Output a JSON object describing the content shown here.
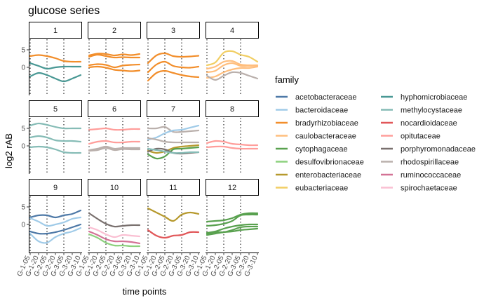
{
  "chart_data": {
    "type": "line",
    "title": "glucose series",
    "xlabel": "time points",
    "ylabel": "log2 rAB",
    "x": [
      "G-1-05",
      "G-1-20",
      "G-2-05",
      "G-2-20",
      "G-3-05",
      "G-3-20",
      "G-3-10"
    ],
    "x_tick_labels": [
      "G-1-05",
      "G-1-20",
      "G-2-05",
      "G-2-20",
      "G-3-05",
      "G-3-20",
      "G-3-10"
    ],
    "vlines_at_index": [
      0,
      2,
      4
    ],
    "ylim": [
      -8,
      8
    ],
    "y_ticks": [
      0,
      5
    ],
    "grid": false,
    "facet_strip_labels": [
      "1",
      "2",
      "3",
      "4",
      "5",
      "6",
      "7",
      "8",
      "9",
      "10",
      "11",
      "12"
    ],
    "legend": {
      "title": "family",
      "placement": "right",
      "entries": [
        {
          "name": "acetobacteraceae",
          "color": "#4e79a7"
        },
        {
          "name": "bacteroidaceae",
          "color": "#a0cbe8"
        },
        {
          "name": "bradyrhizobiaceae",
          "color": "#f28e2b"
        },
        {
          "name": "caulobacteraceae",
          "color": "#ffbe7d"
        },
        {
          "name": "cytophagaceae",
          "color": "#59a14f"
        },
        {
          "name": "desulfovibrionaceae",
          "color": "#8cd17d"
        },
        {
          "name": "enterobacteriaceae",
          "color": "#b6992d"
        },
        {
          "name": "eubacteriaceae",
          "color": "#f1ce63"
        },
        {
          "name": "hyphomicrobiaceae",
          "color": "#499894"
        },
        {
          "name": "methylocystaceae",
          "color": "#86bcb6"
        },
        {
          "name": "nocardioidaceae",
          "color": "#e15759"
        },
        {
          "name": "opitutaceae",
          "color": "#ff9d9a"
        },
        {
          "name": "porphyromonadaceae",
          "color": "#79706e"
        },
        {
          "name": "rhodospirillaceae",
          "color": "#bab0ac"
        },
        {
          "name": "ruminococcaceae",
          "color": "#d37295"
        },
        {
          "name": "spirochaetaceae",
          "color": "#fabfd2"
        }
      ]
    },
    "facets": [
      {
        "label": "1",
        "series": [
          {
            "family": "bradyrhizobiaceae",
            "values": [
              3.2,
              3.5,
              3.2,
              2.6,
              1.8,
              1.6,
              1.6
            ]
          },
          {
            "family": "hyphomicrobiaceae",
            "values": [
              1.2,
              0.4,
              -0.4,
              0.0,
              0.2,
              0.2,
              0.2
            ]
          },
          {
            "family": "hyphomicrobiaceae",
            "values": [
              -2.6,
              -1.6,
              -2.2,
              -3.2,
              -4.0,
              -3.2,
              -2.2
            ]
          }
        ]
      },
      {
        "label": "2",
        "series": [
          {
            "family": "bradyrhizobiaceae",
            "values": [
              3.4,
              3.9,
              3.8,
              3.4,
              3.7,
              3.5,
              3.8
            ]
          },
          {
            "family": "bradyrhizobiaceae",
            "values": [
              3.0,
              3.6,
              3.2,
              2.8,
              2.9,
              2.8,
              2.8
            ]
          },
          {
            "family": "bradyrhizobiaceae",
            "values": [
              0.6,
              0.9,
              0.7,
              0.0,
              0.5,
              0.7,
              0.8
            ]
          },
          {
            "family": "bradyrhizobiaceae",
            "values": [
              0.0,
              0.2,
              -0.1,
              -0.7,
              -0.9,
              -1.1,
              -0.9
            ]
          }
        ]
      },
      {
        "label": "3",
        "series": [
          {
            "family": "bradyrhizobiaceae",
            "values": [
              1.2,
              3.4,
              4.0,
              3.2,
              3.0,
              3.1,
              3.3
            ]
          },
          {
            "family": "bradyrhizobiaceae",
            "values": [
              -1.4,
              0.8,
              1.6,
              0.4,
              0.0,
              -0.1,
              0.2
            ]
          },
          {
            "family": "bradyrhizobiaceae",
            "values": [
              -3.8,
              -1.6,
              -1.0,
              -1.6,
              -2.2,
              -2.6,
              -2.8
            ]
          }
        ]
      },
      {
        "label": "4",
        "series": [
          {
            "family": "eubacteriaceae",
            "values": [
              0.6,
              1.4,
              4.2,
              4.6,
              3.6,
              3.0,
              1.6
            ]
          },
          {
            "family": "caulobacteraceae",
            "values": [
              -0.4,
              0.2,
              1.6,
              1.8,
              0.8,
              0.6,
              0.6
            ]
          },
          {
            "family": "caulobacteraceae",
            "values": [
              -1.4,
              -1.0,
              0.6,
              1.2,
              0.4,
              0.4,
              0.5
            ]
          },
          {
            "family": "caulobacteraceae",
            "values": [
              -3.0,
              -2.6,
              -1.4,
              -0.6,
              -0.2,
              -0.2,
              0.2
            ]
          },
          {
            "family": "rhodospirillaceae",
            "values": [
              -2.4,
              -3.6,
              -2.4,
              -1.4,
              -1.6,
              -2.4,
              -3.2
            ]
          }
        ]
      },
      {
        "label": "5",
        "series": [
          {
            "family": "methylocystaceae",
            "values": [
              5.8,
              6.4,
              6.0,
              5.4,
              5.0,
              5.0,
              5.0
            ]
          },
          {
            "family": "methylocystaceae",
            "values": [
              2.4,
              2.8,
              2.4,
              1.6,
              1.4,
              1.4,
              1.2
            ]
          },
          {
            "family": "methylocystaceae",
            "values": [
              -0.4,
              -0.2,
              -0.4,
              -1.0,
              -1.8,
              -2.0,
              -2.0
            ]
          }
        ]
      },
      {
        "label": "6",
        "series": [
          {
            "family": "opitutaceae",
            "values": [
              4.6,
              4.8,
              5.0,
              4.6,
              4.6,
              4.8,
              4.8
            ]
          },
          {
            "family": "opitutaceae",
            "values": [
              0.6,
              1.2,
              1.4,
              1.0,
              1.0,
              1.2,
              1.2
            ]
          },
          {
            "family": "rhodospirillaceae",
            "values": [
              -1.2,
              -0.8,
              -0.2,
              -0.8,
              -0.6,
              -0.6,
              -0.6
            ]
          },
          {
            "family": "rhodospirillaceae",
            "values": [
              -1.4,
              -1.2,
              -0.6,
              -1.2,
              -0.9,
              -1.0,
              -1.0
            ]
          }
        ]
      },
      {
        "label": "7",
        "series": [
          {
            "family": "rhodospirillaceae",
            "values": [
              5.0,
              5.0,
              5.4,
              4.0,
              4.0,
              4.2,
              4.4
            ]
          },
          {
            "family": "bacteroidaceae",
            "values": [
              1.8,
              2.4,
              3.6,
              4.4,
              4.6,
              5.2,
              5.8
            ]
          },
          {
            "family": "rhodospirillaceae",
            "values": [
              2.2,
              1.8,
              1.2,
              1.0,
              1.0,
              1.0,
              1.0
            ]
          },
          {
            "family": "enterobacteriaceae",
            "values": [
              -1.4,
              -2.0,
              -1.6,
              -0.6,
              -0.2,
              0.0,
              0.2
            ]
          },
          {
            "family": "cytophagaceae",
            "values": [
              -2.4,
              -3.6,
              -3.0,
              -1.0,
              -0.8,
              -0.6,
              -0.4
            ]
          },
          {
            "family": "porphyromonadaceae",
            "values": [
              -1.6,
              -0.8,
              -1.0,
              -2.0,
              -2.2,
              -2.0,
              -1.8
            ]
          },
          {
            "family": "methylocystaceae",
            "values": [
              -0.8,
              -1.2,
              -1.6,
              -2.0,
              -2.0,
              -1.8,
              -1.8
            ]
          }
        ]
      },
      {
        "label": "8",
        "series": [
          {
            "family": "opitutaceae",
            "values": [
              0.8,
              1.4,
              1.2,
              0.6,
              0.4,
              0.2,
              0.2
            ]
          },
          {
            "family": "opitutaceae",
            "values": [
              -0.4,
              -0.2,
              -0.2,
              -0.6,
              -0.8,
              -0.8,
              -0.8
            ]
          }
        ]
      },
      {
        "label": "9",
        "series": [
          {
            "family": "acetobacteraceae",
            "values": [
              2.0,
              2.6,
              2.6,
              2.0,
              2.6,
              3.0,
              4.0
            ]
          },
          {
            "family": "bacteroidaceae",
            "values": [
              1.8,
              0.8,
              -0.4,
              0.0,
              0.6,
              1.6,
              2.0
            ]
          },
          {
            "family": "acetobacteraceae",
            "values": [
              -2.0,
              -2.6,
              -2.6,
              -2.2,
              -1.6,
              -0.8,
              0.0
            ]
          },
          {
            "family": "bacteroidaceae",
            "values": [
              -2.6,
              -4.8,
              -5.2,
              -3.6,
              -2.6,
              -2.0,
              -1.0
            ]
          }
        ]
      },
      {
        "label": "10",
        "series": [
          {
            "family": "porphyromonadaceae",
            "values": [
              3.2,
              1.6,
              0.2,
              -0.6,
              -0.4,
              -0.2,
              -0.2
            ]
          },
          {
            "family": "spirochaetaceae",
            "values": [
              -0.8,
              -1.6,
              -2.8,
              -3.6,
              -3.0,
              -3.2,
              -3.4
            ]
          },
          {
            "family": "ruminococcaceae",
            "values": [
              -2.0,
              -3.0,
              -4.2,
              -4.8,
              -4.8,
              -5.0,
              -5.4
            ]
          },
          {
            "family": "desulfovibrionaceae",
            "values": [
              -2.8,
              -3.8,
              -5.2,
              -6.0,
              -6.0,
              -6.2,
              -6.2
            ]
          }
        ]
      },
      {
        "label": "11",
        "series": [
          {
            "family": "enterobacteriaceae",
            "values": [
              4.6,
              3.4,
              2.2,
              1.0,
              2.8,
              3.4,
              3.0
            ]
          },
          {
            "family": "nocardioidaceae",
            "values": [
              -1.6,
              -3.2,
              -3.8,
              -3.2,
              -3.0,
              -2.2,
              -2.2
            ]
          }
        ]
      },
      {
        "label": "12",
        "series": [
          {
            "family": "cytophagaceae",
            "values": [
              0.8,
              1.0,
              1.2,
              1.8,
              2.8,
              3.2,
              3.2
            ]
          },
          {
            "family": "cytophagaceae",
            "values": [
              -0.4,
              -0.2,
              0.2,
              1.0,
              2.6,
              2.8,
              2.8
            ]
          },
          {
            "family": "cytophagaceae",
            "values": [
              -2.4,
              -2.0,
              -1.2,
              -0.6,
              -0.2,
              0.0,
              0.0
            ]
          },
          {
            "family": "cytophagaceae",
            "values": [
              -2.6,
              -2.2,
              -2.2,
              -1.6,
              -0.8,
              -0.6,
              -0.6
            ]
          },
          {
            "family": "cytophagaceae",
            "values": [
              -3.0,
              -2.6,
              -2.2,
              -2.0,
              -1.6,
              -1.4,
              -1.2
            ]
          }
        ]
      }
    ]
  }
}
